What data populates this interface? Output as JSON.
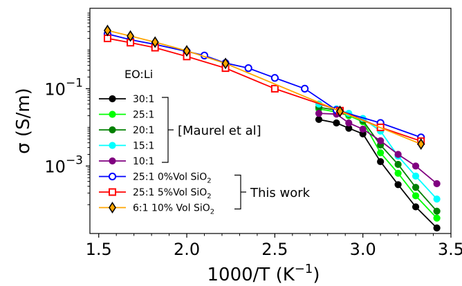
{
  "chart_data": {
    "type": "line",
    "xlabel": "1000/T (K",
    "xlabel_sup": "−1",
    "xlabel_close": ")",
    "ylabel": "σ (S/m)",
    "yscale": "log",
    "xlim": [
      1.45,
      3.5
    ],
    "ylim": [
      1.8e-05,
      12
    ],
    "xticks": [
      1.5,
      2.0,
      2.5,
      3.0,
      3.5
    ],
    "xtick_labels": [
      "1.5",
      "2.0",
      "2.5",
      "3.0",
      "3.5"
    ],
    "xminor_ticks": [
      1.6,
      1.7,
      1.8,
      1.9,
      2.1,
      2.2,
      2.3,
      2.4,
      2.6,
      2.7,
      2.8,
      2.9,
      3.1,
      3.2,
      3.3,
      3.4
    ],
    "yticks": [
      {
        "value": 0.1,
        "base": "10",
        "exp": "−1"
      },
      {
        "value": 0.001,
        "base": "10",
        "exp": "−3"
      }
    ],
    "legend_title": "EO:Li",
    "legend_position": "lower-left",
    "groups": [
      {
        "label": "[Maurel et al]",
        "series_from": 0,
        "series_to": 4
      },
      {
        "label": "This work",
        "series_from": 5,
        "series_to": 7
      }
    ],
    "series": [
      {
        "name": "30:1",
        "color": "#000000",
        "marker": "circle",
        "fill": "filled",
        "x": [
          2.75,
          2.85,
          2.92,
          3.0,
          3.1,
          3.2,
          3.3,
          3.42
        ],
        "y": [
          0.016,
          0.013,
          0.0095,
          0.0068,
          0.0013,
          0.00033,
          8.8e-05,
          2.5e-05
        ]
      },
      {
        "name": "25:1",
        "color": "#00ff00",
        "marker": "circle",
        "fill": "filled",
        "x": [
          2.75,
          2.85,
          2.92,
          3.0,
          3.1,
          3.2,
          3.3,
          3.42
        ],
        "y": [
          0.03,
          0.025,
          0.02,
          0.014,
          0.0022,
          0.00065,
          0.00017,
          4.5e-05
        ]
      },
      {
        "name": "20:1",
        "color": "#008000",
        "marker": "circle",
        "fill": "filled",
        "x": [
          2.75,
          2.85,
          2.92,
          3.0,
          3.1,
          3.2,
          3.3,
          3.42
        ],
        "y": [
          0.033,
          0.028,
          0.022,
          0.015,
          0.0035,
          0.0011,
          0.00028,
          6.8e-05
        ]
      },
      {
        "name": "15:1",
        "color": "#00ffff",
        "marker": "circle",
        "fill": "filled",
        "x": [
          2.75,
          2.85,
          2.92,
          3.0,
          3.1,
          3.2,
          3.3,
          3.42
        ],
        "y": [
          0.04,
          0.03,
          0.023,
          0.017,
          0.008,
          0.0018,
          0.00055,
          0.00014
        ]
      },
      {
        "name": "10:1",
        "color": "#800080",
        "marker": "circle",
        "fill": "filled",
        "x": [
          2.75,
          2.85,
          2.92,
          3.0,
          3.1,
          3.2,
          3.3,
          3.42
        ],
        "y": [
          0.023,
          0.022,
          0.013,
          0.009,
          0.0045,
          0.002,
          0.001,
          0.00035
        ]
      },
      {
        "name": "25:1 0%Vol SiO",
        "name_sub": "2",
        "color": "#0000ff",
        "marker": "circle",
        "fill": "hollow",
        "x": [
          1.55,
          1.68,
          1.82,
          2.0,
          2.1,
          2.22,
          2.35,
          2.5,
          2.67,
          2.85,
          3.1,
          3.33
        ],
        "y": [
          2.6,
          1.85,
          1.4,
          0.92,
          0.72,
          0.46,
          0.34,
          0.19,
          0.1,
          0.028,
          0.013,
          0.0055
        ]
      },
      {
        "name": "25:1 5%Vol SiO",
        "name_sub": "2",
        "color": "#ff0000",
        "marker": "square",
        "fill": "hollow",
        "x": [
          1.55,
          1.68,
          1.82,
          2.0,
          2.22,
          2.5,
          2.87,
          3.1,
          3.33
        ],
        "y": [
          2.0,
          1.55,
          1.15,
          0.68,
          0.34,
          0.1,
          0.027,
          0.01,
          0.0044
        ]
      },
      {
        "name": "6:1 10% Vol SiO",
        "name_sub": "2",
        "color": "#ffa500",
        "marker": "diamond",
        "fill": "filled",
        "edge": "#000000",
        "x": [
          1.55,
          1.68,
          1.82,
          2.0,
          2.22,
          2.87,
          3.33
        ],
        "y": [
          3.2,
          2.3,
          1.6,
          0.95,
          0.45,
          0.026,
          0.0037
        ]
      }
    ]
  }
}
